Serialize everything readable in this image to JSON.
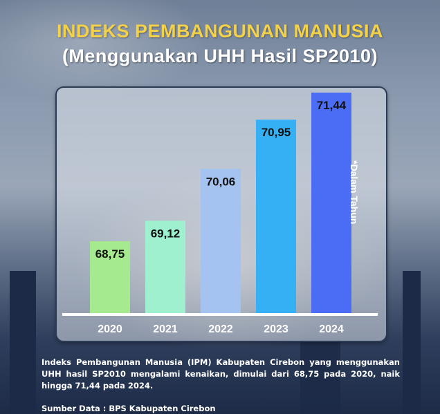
{
  "header": {
    "title": "INDEKS PEMBANGUNAN MANUSIA",
    "subtitle": "(Menggunakan UHH Hasil SP2010)"
  },
  "chart_data": {
    "type": "bar",
    "categories": [
      "2020",
      "2021",
      "2022",
      "2023",
      "2024"
    ],
    "values": [
      68.75,
      69.12,
      70.06,
      70.95,
      71.44
    ],
    "value_labels": [
      "68,75",
      "69,12",
      "70,06",
      "70,95",
      "71,44"
    ],
    "bar_colors": [
      "#a6ea8f",
      "#9ef0cf",
      "#a4c3f0",
      "#36b0f5",
      "#4b6cf5"
    ],
    "ylim": [
      67.45,
      71.44
    ],
    "unit_note": "*Dalam Tahun",
    "grid": false,
    "legend": "none"
  },
  "footer": {
    "description": "Indeks Pembangunan Manusia (IPM) Kabupaten Cirebon yang menggunakan UHH hasil SP2010 mengalami kenaikan, dimulai dari 68,75 pada 2020, naik hingga 71,44 pada 2024.",
    "source": "Sumber Data : BPS Kabupaten Cirebon"
  }
}
